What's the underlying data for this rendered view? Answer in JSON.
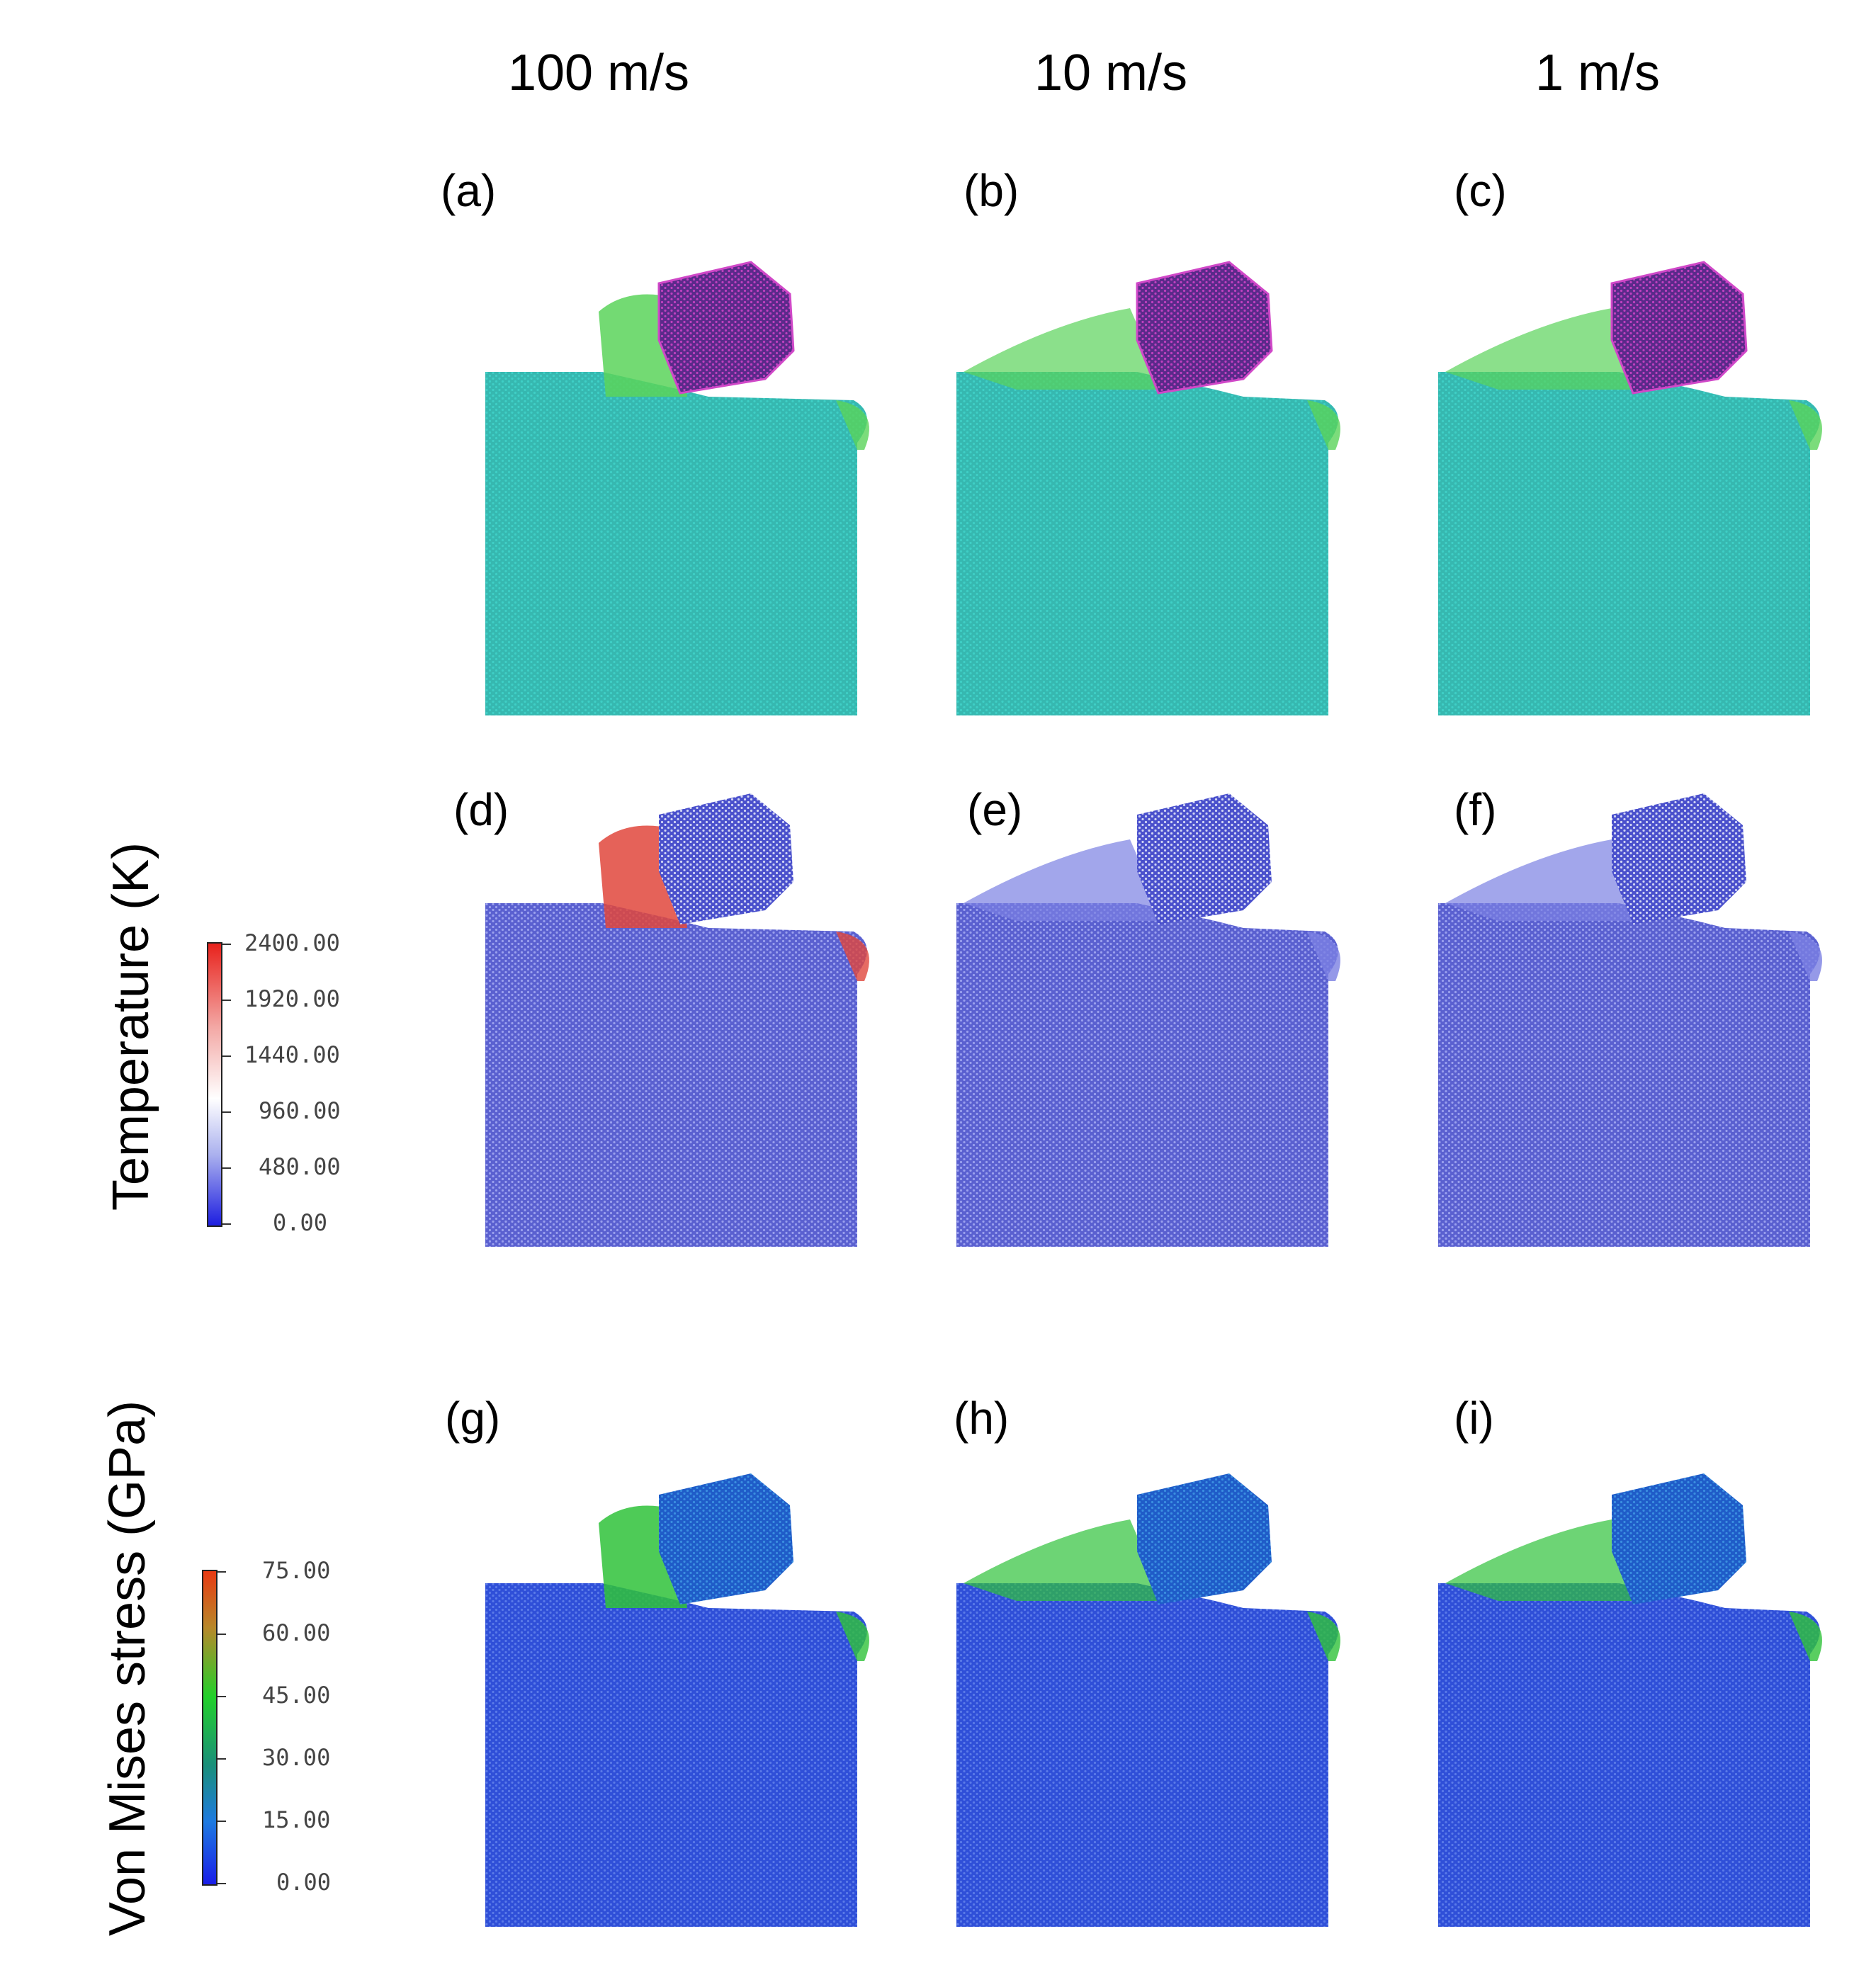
{
  "columns": [
    {
      "title": "100 m/s"
    },
    {
      "title": "10 m/s"
    },
    {
      "title": "1 m/s"
    }
  ],
  "panel_labels": [
    "(a)",
    "(b)",
    "(c)",
    "(d)",
    "(e)",
    "(f)",
    "(g)",
    "(h)",
    "(i)"
  ],
  "rows": [
    {
      "name": "structure",
      "label": ""
    },
    {
      "name": "temperature",
      "label": "Temperature (K)",
      "colorbar": {
        "ticks": [
          "2400.00",
          "1920.00",
          "1440.00",
          "960.00",
          "480.00",
          "0.00"
        ],
        "colors": [
          "#e8221c",
          "#f3a9a6",
          "#ffffff",
          "#aab0ee",
          "#1d1ee0"
        ]
      }
    },
    {
      "name": "stress",
      "label": "Von Mises stress (GPa)",
      "colorbar": {
        "ticks": [
          "75.00",
          "60.00",
          "45.00",
          "30.00",
          "15.00",
          "0.00"
        ],
        "colors": [
          "#e83a13",
          "#b8882a",
          "#22d02a",
          "#1a8f7a",
          "#1e7ae0",
          "#1a1ee8"
        ]
      }
    }
  ],
  "colors": {
    "workpiece_structure": "#3fcfc6",
    "tool_structure": "#7a3fa8",
    "chip_structure": "#5ad35a",
    "workpiece_temperature": "#6e74de",
    "tool_temperature": "#5a60d8",
    "hot_temperature": "#e0463c",
    "workpiece_stress": "#3f5fe0",
    "chip_stress": "#2fc23a",
    "tool_stress": "#2a70d8"
  }
}
